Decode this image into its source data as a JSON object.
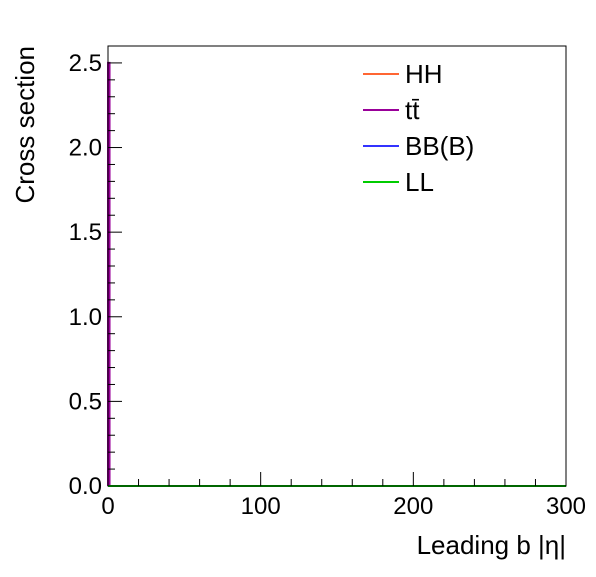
{
  "chart_data": {
    "type": "line",
    "xlabel": "Leading b |η|",
    "ylabel": "Cross section",
    "xlim": [
      0,
      300
    ],
    "ylim": [
      0,
      2.6
    ],
    "x_ticks": [
      {
        "value": 0,
        "label": "0"
      },
      {
        "value": 100,
        "label": "100"
      },
      {
        "value": 200,
        "label": "200"
      },
      {
        "value": 300,
        "label": "300"
      }
    ],
    "y_ticks": [
      {
        "value": 0.0,
        "label": "0.0"
      },
      {
        "value": 0.5,
        "label": "0.5"
      },
      {
        "value": 1.0,
        "label": "1.0"
      },
      {
        "value": 1.5,
        "label": "1.5"
      },
      {
        "value": 2.0,
        "label": "2.0"
      },
      {
        "value": 2.5,
        "label": "2.5"
      }
    ],
    "grid": false,
    "legend_position": "top-right",
    "series": [
      {
        "name": "HH",
        "color": "#ff6633",
        "x": [
          0,
          1,
          1,
          300
        ],
        "y": [
          0,
          0,
          0,
          0
        ]
      },
      {
        "name": "tt̄",
        "color": "#990099",
        "x": [
          0,
          0,
          1,
          1,
          300
        ],
        "y": [
          0,
          2.5,
          2.5,
          0,
          0
        ]
      },
      {
        "name": "BB(B)",
        "color": "#3333ff",
        "x": [
          0,
          1,
          1,
          300
        ],
        "y": [
          0,
          0,
          0,
          0
        ]
      },
      {
        "name": "LL",
        "color": "#00cc00",
        "x": [
          0,
          300
        ],
        "y": [
          0,
          0
        ]
      }
    ]
  }
}
